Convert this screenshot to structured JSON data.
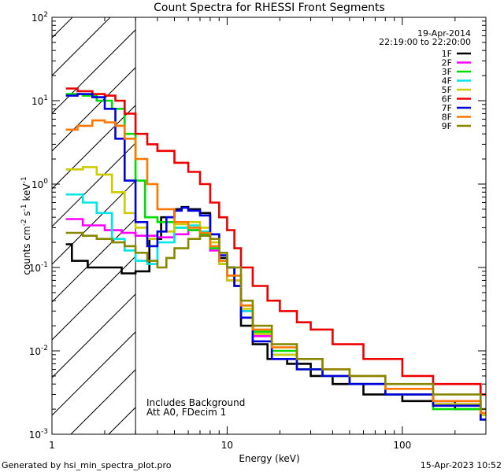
{
  "chart_data": {
    "type": "line",
    "title": "Count Spectra for RHESSI Front Segments",
    "xlabel": "Energy (keV)",
    "ylabel": "counts cm-2 s-1 keV-1",
    "ylabel_parts": [
      "counts cm",
      "-2",
      " s",
      "-1",
      " keV",
      "-1"
    ],
    "xscale": "log",
    "yscale": "log",
    "xlim": [
      1,
      300
    ],
    "ylim": [
      0.001,
      100
    ],
    "x_ticks": [
      {
        "value": 1,
        "label": "1"
      },
      {
        "value": 10,
        "label": "10"
      },
      {
        "value": 100,
        "label": "100"
      }
    ],
    "y_ticks": [
      {
        "value": 0.001,
        "base": "10",
        "exp": "-3"
      },
      {
        "value": 0.01,
        "base": "10",
        "exp": "-2"
      },
      {
        "value": 0.1,
        "base": "10",
        "exp": "-1"
      },
      {
        "value": 1,
        "base": "10",
        "exp": "0"
      },
      {
        "value": 10,
        "base": "10",
        "exp": "1"
      },
      {
        "value": 100,
        "base": "10",
        "exp": "2"
      }
    ],
    "date": "19-Apr-2014",
    "time_range": "22:19:00 to 22:20:00",
    "legend_position": "top-right",
    "hatched_region_max_energy": 3,
    "annotations": [
      "Includes Background",
      "Att A0, FDecim 1"
    ],
    "series": [
      {
        "name": "1F",
        "color": "#000000",
        "points": [
          [
            1.2,
            0.19
          ],
          [
            1.3,
            0.12
          ],
          [
            1.6,
            0.1
          ],
          [
            2.0,
            0.1
          ],
          [
            2.5,
            0.085
          ],
          [
            3,
            0.09
          ],
          [
            3.6,
            0.22
          ],
          [
            4.2,
            0.4
          ],
          [
            5,
            0.5
          ],
          [
            5.5,
            0.53
          ],
          [
            6,
            0.5
          ],
          [
            7,
            0.45
          ],
          [
            8,
            0.25
          ],
          [
            9,
            0.13
          ],
          [
            10,
            0.1
          ],
          [
            11,
            0.06
          ],
          [
            12,
            0.02
          ],
          [
            14,
            0.012
          ],
          [
            17,
            0.008
          ],
          [
            22,
            0.007
          ],
          [
            30,
            0.005
          ],
          [
            40,
            0.004
          ],
          [
            60,
            0.003
          ],
          [
            100,
            0.0025
          ],
          [
            200,
            0.002
          ],
          [
            280,
            0.0015
          ]
        ]
      },
      {
        "name": "2F",
        "color": "#ff00ff",
        "points": [
          [
            1.2,
            0.38
          ],
          [
            1.5,
            0.32
          ],
          [
            2,
            0.28
          ],
          [
            2.5,
            0.26
          ],
          [
            3,
            0.24
          ],
          [
            4,
            0.23
          ],
          [
            5,
            0.25
          ],
          [
            6,
            0.28
          ],
          [
            7,
            0.24
          ],
          [
            8,
            0.16
          ],
          [
            9,
            0.11
          ],
          [
            10,
            0.07
          ],
          [
            12,
            0.03
          ],
          [
            14,
            0.015
          ],
          [
            18,
            0.008
          ],
          [
            25,
            0.006
          ],
          [
            35,
            0.005
          ],
          [
            50,
            0.004
          ],
          [
            80,
            0.003
          ],
          [
            150,
            0.0025
          ],
          [
            280,
            0.0018
          ]
        ]
      },
      {
        "name": "3F",
        "color": "#00dd00",
        "points": [
          [
            1.2,
            12
          ],
          [
            1.5,
            11.5
          ],
          [
            1.8,
            10
          ],
          [
            2.2,
            8
          ],
          [
            2.6,
            4
          ],
          [
            3,
            1.1
          ],
          [
            3.4,
            0.4
          ],
          [
            4,
            0.35
          ],
          [
            5,
            0.3
          ],
          [
            6,
            0.28
          ],
          [
            7,
            0.25
          ],
          [
            8,
            0.17
          ],
          [
            9,
            0.11
          ],
          [
            10,
            0.08
          ],
          [
            12,
            0.035
          ],
          [
            14,
            0.017
          ],
          [
            18,
            0.01
          ],
          [
            25,
            0.006
          ],
          [
            35,
            0.005
          ],
          [
            50,
            0.004
          ],
          [
            80,
            0.003
          ],
          [
            150,
            0.002
          ],
          [
            280,
            0.0015
          ]
        ]
      },
      {
        "name": "4F",
        "color": "#00e5e5",
        "points": [
          [
            1.2,
            0.75
          ],
          [
            1.5,
            0.6
          ],
          [
            1.8,
            0.45
          ],
          [
            2.2,
            0.22
          ],
          [
            2.6,
            0.16
          ],
          [
            3,
            0.12
          ],
          [
            3.5,
            0.11
          ],
          [
            4,
            0.2
          ],
          [
            5,
            0.3
          ],
          [
            6,
            0.32
          ],
          [
            7,
            0.27
          ],
          [
            8,
            0.18
          ],
          [
            9,
            0.12
          ],
          [
            10,
            0.08
          ],
          [
            12,
            0.03
          ],
          [
            14,
            0.016
          ],
          [
            18,
            0.009
          ],
          [
            25,
            0.006
          ],
          [
            35,
            0.005
          ],
          [
            50,
            0.004
          ],
          [
            80,
            0.003
          ],
          [
            150,
            0.0023
          ],
          [
            280,
            0.0017
          ]
        ]
      },
      {
        "name": "5F",
        "color": "#cccc00",
        "points": [
          [
            1.2,
            1.5
          ],
          [
            1.5,
            1.6
          ],
          [
            1.8,
            1.3
          ],
          [
            2.2,
            0.8
          ],
          [
            2.6,
            0.45
          ],
          [
            3,
            0.3
          ],
          [
            3.5,
            0.22
          ],
          [
            4,
            0.27
          ],
          [
            5,
            0.33
          ],
          [
            6,
            0.35
          ],
          [
            7,
            0.3
          ],
          [
            8,
            0.2
          ],
          [
            9,
            0.11
          ],
          [
            10,
            0.07
          ],
          [
            12,
            0.032
          ],
          [
            14,
            0.016
          ],
          [
            18,
            0.009
          ],
          [
            25,
            0.006
          ],
          [
            35,
            0.005
          ],
          [
            50,
            0.004
          ],
          [
            80,
            0.003
          ],
          [
            150,
            0.0023
          ],
          [
            280,
            0.0017
          ]
        ]
      },
      {
        "name": "6F",
        "color": "#ee0000",
        "points": [
          [
            1.2,
            14
          ],
          [
            1.4,
            13
          ],
          [
            1.7,
            12
          ],
          [
            2,
            11.5
          ],
          [
            2.3,
            10
          ],
          [
            2.6,
            7
          ],
          [
            3,
            4
          ],
          [
            3.5,
            3
          ],
          [
            4,
            2.5
          ],
          [
            5,
            1.8
          ],
          [
            6,
            1.4
          ],
          [
            7,
            1
          ],
          [
            8,
            0.6
          ],
          [
            9,
            0.4
          ],
          [
            10,
            0.28
          ],
          [
            11,
            0.17
          ],
          [
            12,
            0.1
          ],
          [
            14,
            0.06
          ],
          [
            17,
            0.04
          ],
          [
            20,
            0.03
          ],
          [
            25,
            0.022
          ],
          [
            30,
            0.018
          ],
          [
            40,
            0.012
          ],
          [
            60,
            0.008
          ],
          [
            100,
            0.005
          ],
          [
            150,
            0.004
          ],
          [
            280,
            0.003
          ]
        ]
      },
      {
        "name": "7F",
        "color": "#0000dd",
        "points": [
          [
            1.2,
            11.5
          ],
          [
            1.4,
            12
          ],
          [
            1.7,
            11
          ],
          [
            2,
            8
          ],
          [
            2.3,
            3.5
          ],
          [
            2.6,
            1.1
          ],
          [
            3,
            0.35
          ],
          [
            3.5,
            0.18
          ],
          [
            4,
            0.27
          ],
          [
            4.5,
            0.4
          ],
          [
            5,
            0.48
          ],
          [
            5.5,
            0.52
          ],
          [
            6,
            0.48
          ],
          [
            7,
            0.42
          ],
          [
            8,
            0.25
          ],
          [
            9,
            0.14
          ],
          [
            10,
            0.1
          ],
          [
            11,
            0.06
          ],
          [
            12,
            0.025
          ],
          [
            14,
            0.013
          ],
          [
            18,
            0.008
          ],
          [
            25,
            0.006
          ],
          [
            35,
            0.005
          ],
          [
            50,
            0.004
          ],
          [
            80,
            0.003
          ],
          [
            150,
            0.0022
          ],
          [
            280,
            0.0015
          ]
        ]
      },
      {
        "name": "8F",
        "color": "#ff7700",
        "points": [
          [
            1.2,
            4.5
          ],
          [
            1.4,
            5
          ],
          [
            1.7,
            5.8
          ],
          [
            2,
            5.5
          ],
          [
            2.3,
            5
          ],
          [
            2.6,
            3.5
          ],
          [
            3,
            2
          ],
          [
            3.5,
            1
          ],
          [
            4,
            0.5
          ],
          [
            5,
            0.35
          ],
          [
            6,
            0.3
          ],
          [
            7,
            0.26
          ],
          [
            8,
            0.18
          ],
          [
            9,
            0.12
          ],
          [
            10,
            0.08
          ],
          [
            12,
            0.035
          ],
          [
            14,
            0.018
          ],
          [
            18,
            0.011
          ],
          [
            25,
            0.008
          ],
          [
            35,
            0.006
          ],
          [
            50,
            0.005
          ],
          [
            80,
            0.0035
          ],
          [
            150,
            0.0025
          ],
          [
            280,
            0.0018
          ]
        ]
      },
      {
        "name": "9F",
        "color": "#888800",
        "points": [
          [
            1.2,
            0.26
          ],
          [
            1.5,
            0.24
          ],
          [
            1.8,
            0.22
          ],
          [
            2.2,
            0.2
          ],
          [
            2.6,
            0.18
          ],
          [
            3,
            0.15
          ],
          [
            3.5,
            0.12
          ],
          [
            4,
            0.1
          ],
          [
            4.5,
            0.13
          ],
          [
            5,
            0.17
          ],
          [
            6,
            0.22
          ],
          [
            7,
            0.24
          ],
          [
            8,
            0.22
          ],
          [
            9,
            0.15
          ],
          [
            10,
            0.1
          ],
          [
            12,
            0.04
          ],
          [
            14,
            0.02
          ],
          [
            18,
            0.012
          ],
          [
            25,
            0.008
          ],
          [
            35,
            0.006
          ],
          [
            50,
            0.005
          ],
          [
            80,
            0.004
          ],
          [
            150,
            0.003
          ],
          [
            280,
            0.002
          ]
        ]
      }
    ]
  },
  "footer": {
    "left": "Generated by hsi_min_spectra_plot.pro",
    "right": "15-Apr-2023 10:52"
  }
}
